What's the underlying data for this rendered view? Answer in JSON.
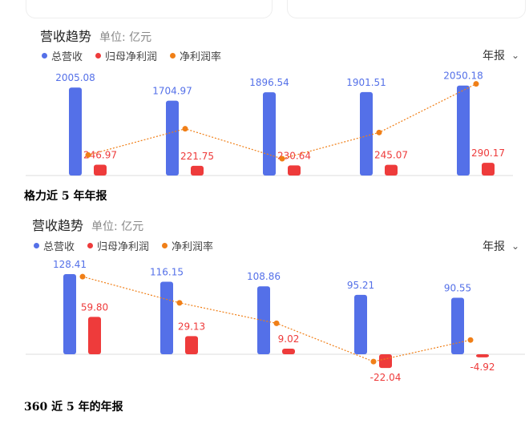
{
  "colors": {
    "revenue": "#5470e8",
    "profit": "#ee3b3b",
    "margin": "#f07f17",
    "axis": "#dddddd"
  },
  "panels": [
    {
      "title": "营收趋势",
      "unit": "单位: 亿元",
      "legend": [
        "总营收",
        "归母净利润",
        "净利润率"
      ],
      "period": "年报",
      "caption": "格力近 5 年年报"
    },
    {
      "title": "营收趋势",
      "unit": "单位: 亿元",
      "legend": [
        "总营收",
        "归母净利润",
        "净利润率"
      ],
      "period": "年报",
      "caption": "360 近 5 年的年报"
    }
  ],
  "chart_data": [
    {
      "type": "bar",
      "categories": [
        "",
        "",
        "",
        "",
        ""
      ],
      "series": [
        {
          "name": "总营收",
          "values": [
            2005.08,
            1704.97,
            1896.54,
            1901.51,
            2050.18
          ]
        },
        {
          "name": "归母净利润",
          "values": [
            246.97,
            221.75,
            230.64,
            245.07,
            290.17
          ]
        },
        {
          "name": "净利润率",
          "type": "line",
          "values": [
            12.3,
            13.0,
            12.2,
            12.9,
            14.2
          ]
        }
      ],
      "value_labels": {
        "revenue": [
          "2005.08",
          "1704.97",
          "1896.54",
          "1901.51",
          "2050.18"
        ],
        "profit": [
          "246.97",
          "221.75",
          "230.64",
          "245.07",
          "290.17"
        ]
      },
      "ylim": [
        0,
        2100
      ],
      "margin_ylim": [
        11.9,
        14.3
      ],
      "grid": false
    },
    {
      "type": "bar",
      "categories": [
        "",
        "",
        "",
        "",
        ""
      ],
      "series": [
        {
          "name": "总营收",
          "values": [
            128.41,
            116.15,
            108.86,
            95.21,
            90.55
          ]
        },
        {
          "name": "归母净利润",
          "values": [
            59.8,
            29.13,
            9.02,
            -22.04,
            -4.92
          ]
        },
        {
          "name": "净利润率",
          "type": "line",
          "values": [
            46.6,
            25.1,
            8.3,
            -23.1,
            -5.4
          ]
        }
      ],
      "value_labels": {
        "revenue": [
          "128.41",
          "116.15",
          "108.86",
          "95.21",
          "90.55"
        ],
        "profit": [
          "59.80",
          "29.13",
          "9.02",
          "-22.04",
          "-4.92"
        ]
      },
      "ylim": [
        -22,
        128.41
      ],
      "margin_ylim": [
        -25,
        50
      ],
      "grid": false
    }
  ]
}
